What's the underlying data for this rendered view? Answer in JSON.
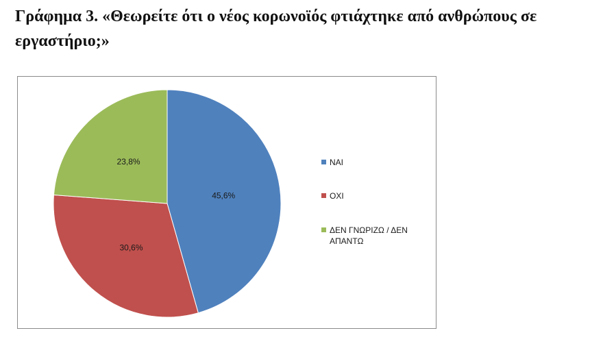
{
  "title": "Γράφημα 3. «Θεωρείτε ότι ο νέος κορωνοϊός φτιάχτηκε από ανθρώπους σε εργαστήριο;»",
  "chart_data": {
    "type": "pie",
    "categories": [
      "ΝΑΙ",
      "ΟΧΙ",
      "ΔΕΝ ΓΝΩΡΙΖΩ / ΔΕΝ ΑΠΑΝΤΩ"
    ],
    "values": [
      45.6,
      30.6,
      23.8
    ],
    "data_labels": [
      "45,6%",
      "30,6%",
      "23,8%"
    ],
    "colors": [
      "#4F81BD",
      "#C0504D",
      "#9BBB59"
    ],
    "legend_lines": [
      [
        "ΝΑΙ"
      ],
      [
        "ΟΧΙ"
      ],
      [
        "ΔΕΝ ΓΝΩΡΙΖΩ / ΔΕΝ",
        "ΑΠΑΝΤΩ"
      ]
    ],
    "legend_position": "right",
    "start_angle": "top",
    "direction": "clockwise"
  }
}
